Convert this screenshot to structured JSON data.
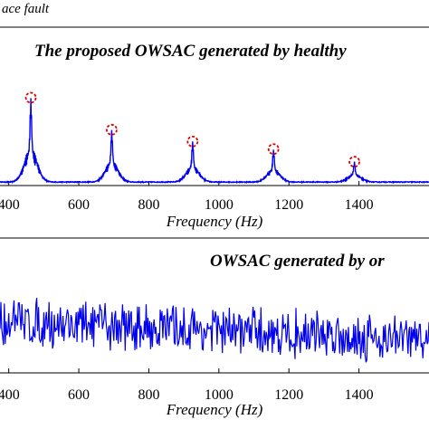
{
  "header_text": "ace fault",
  "chart_data": [
    {
      "type": "line",
      "title": "The proposed OWSAC generated by healthy",
      "xlabel": "Frequency (Hz)",
      "ylabel": "",
      "xticks": [
        "400",
        "600",
        "800",
        "1000",
        "1200",
        "1400"
      ],
      "xlim": [
        375,
        1600
      ],
      "ylim": [
        0,
        1.15
      ],
      "grid": false,
      "line_color": "#0000ee",
      "marker_color": "#dd0000",
      "peaks": [
        {
          "freq": 463,
          "amp": 1.0
        },
        {
          "freq": 694,
          "amp": 0.62
        },
        {
          "freq": 925,
          "amp": 0.48
        },
        {
          "freq": 1156,
          "amp": 0.39
        },
        {
          "freq": 1387,
          "amp": 0.24
        }
      ],
      "marked_peaks": [
        {
          "x": 463,
          "y": 1.0
        },
        {
          "x": 694,
          "y": 0.62
        },
        {
          "x": 925,
          "y": 0.48
        },
        {
          "x": 1156,
          "y": 0.39
        },
        {
          "x": 1387,
          "y": 0.24
        }
      ]
    },
    {
      "type": "line",
      "title": "OWSAC generated by or",
      "xlabel": "Frequency (Hz)",
      "ylabel": "",
      "xticks": [
        "400",
        "600",
        "800",
        "1000",
        "1200",
        "1400"
      ],
      "xlim": [
        375,
        1600
      ],
      "ylim": [
        0,
        1.0
      ],
      "grid": false,
      "line_color": "#0000ee",
      "noise_level_start": 0.55,
      "noise_level_end": 0.35,
      "noise_spread": 0.3
    }
  ]
}
